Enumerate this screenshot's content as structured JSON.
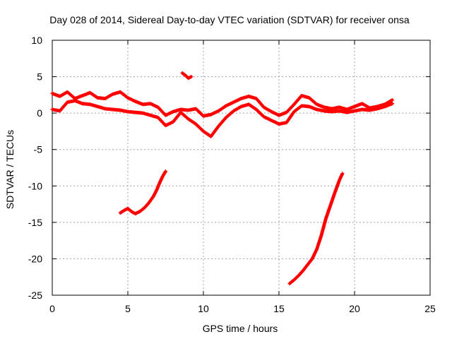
{
  "chart_data": {
    "type": "scatter",
    "title": "Day 028 of 2014, Sidereal Day-to-day VTEC variation (SDTVAR) for receiver onsa",
    "xlabel": "GPS time / hours",
    "ylabel": "SDTVAR / TECUs",
    "xlim": [
      0,
      25
    ],
    "ylim": [
      -25,
      10
    ],
    "xticks": [
      "0",
      "5",
      "10",
      "15",
      "20",
      "25"
    ],
    "yticks": [
      "10",
      "5",
      "0",
      "-5",
      "-10",
      "-15",
      "-20",
      "-25"
    ],
    "grid": true,
    "marker": "plus",
    "series_color": "#ff0000",
    "series": [
      {
        "name": "main-band-upper",
        "x": [
          0,
          0.5,
          1,
          1.5,
          2,
          2.5,
          3,
          3.5,
          4,
          4.5,
          5,
          5.5,
          6,
          6.5,
          7,
          7.5,
          8,
          8.5,
          9,
          9.5,
          10,
          10.5,
          11,
          11.5,
          12,
          12.5,
          13,
          13.5,
          14,
          14.5,
          15,
          15.5,
          16,
          16.5,
          17,
          17.5,
          18,
          18.5,
          19,
          19.5,
          20,
          20.5,
          21,
          21.5,
          22,
          22.5
        ],
        "y": [
          2.7,
          2.3,
          2.9,
          2.0,
          2.4,
          2.8,
          2.1,
          2.0,
          2.6,
          2.9,
          2.1,
          1.6,
          1.2,
          1.3,
          0.8,
          -0.3,
          0.2,
          0.5,
          0.4,
          0.6,
          -0.4,
          -0.2,
          0.3,
          1.0,
          1.5,
          2.0,
          2.3,
          2.0,
          0.8,
          0.2,
          -0.3,
          0.1,
          1.2,
          2.4,
          2.1,
          1.2,
          0.8,
          0.6,
          0.8,
          0.5,
          0.9,
          1.3,
          0.7,
          0.9,
          1.2,
          1.8
        ]
      },
      {
        "name": "main-band-lower",
        "x": [
          0,
          0.5,
          1,
          1.5,
          2,
          2.5,
          3,
          3.5,
          4,
          4.5,
          5,
          5.5,
          6,
          6.5,
          7,
          7.5,
          8,
          8.5,
          9,
          9.5,
          10,
          10.5,
          11,
          11.5,
          12,
          12.5,
          13,
          13.5,
          14,
          14.5,
          15,
          15.5,
          16,
          16.5,
          17,
          17.5,
          18,
          18.5,
          19,
          19.5,
          20,
          20.5,
          21,
          21.5,
          22,
          22.5
        ],
        "y": [
          0.5,
          0.3,
          1.5,
          1.7,
          1.3,
          1.2,
          0.9,
          0.6,
          0.5,
          0.4,
          0.2,
          0.1,
          0.0,
          -0.3,
          -0.6,
          -1.7,
          -1.2,
          0.1,
          -0.8,
          -1.5,
          -2.5,
          -3.2,
          -1.8,
          -0.6,
          0.3,
          0.9,
          1.2,
          0.5,
          -0.5,
          -1.0,
          -1.5,
          -1.3,
          0.2,
          1.0,
          0.9,
          0.5,
          0.3,
          0.2,
          0.3,
          0.1,
          0.3,
          0.5,
          0.4,
          0.6,
          0.9,
          1.3
        ]
      },
      {
        "name": "short-arc-hour-9",
        "x": [
          8.6,
          8.8,
          9.0,
          9.2
        ],
        "y": [
          5.5,
          5.2,
          4.8,
          5.0
        ]
      },
      {
        "name": "descending-arc-left",
        "x": [
          4.5,
          4.8,
          5.0,
          5.3,
          5.5,
          5.8,
          6.1,
          6.4,
          6.7,
          6.9,
          7.1,
          7.3,
          7.5
        ],
        "y": [
          -13.7,
          -13.3,
          -13.1,
          -13.6,
          -13.8,
          -13.5,
          -13.0,
          -12.3,
          -11.4,
          -10.6,
          -9.6,
          -8.7,
          -8.0
        ]
      },
      {
        "name": "descending-arc-right",
        "x": [
          15.7,
          16.0,
          16.3,
          16.6,
          16.9,
          17.2,
          17.5,
          17.8,
          18.1,
          18.4,
          18.7,
          19.0,
          19.2
        ],
        "y": [
          -23.4,
          -22.9,
          -22.3,
          -21.6,
          -20.8,
          -20.0,
          -18.7,
          -16.8,
          -14.5,
          -12.7,
          -10.9,
          -9.2,
          -8.3
        ]
      }
    ]
  }
}
